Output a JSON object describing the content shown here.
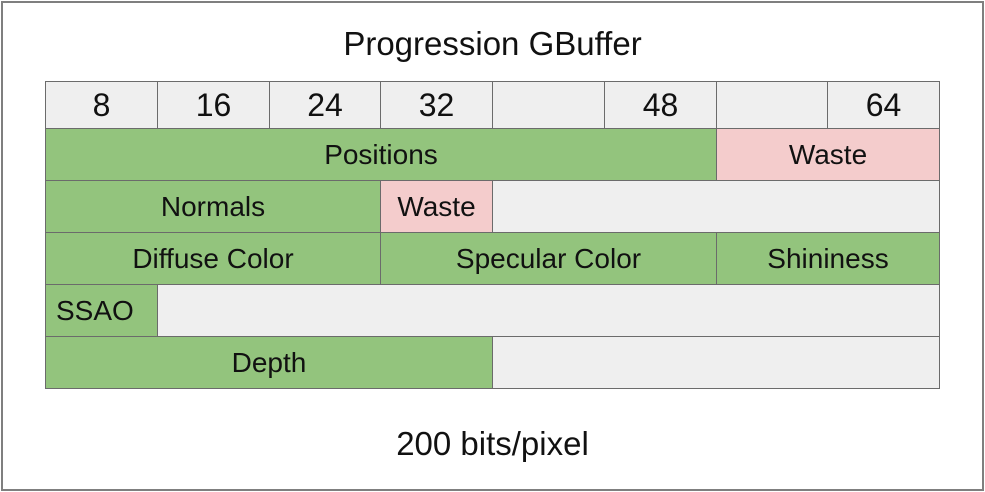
{
  "diagram": {
    "title": "Progression GBuffer",
    "footer": "200 bits/pixel",
    "colors": {
      "used": "#93c47d",
      "waste": "#f4cccc",
      "empty": "#efefef",
      "header": "#efefef",
      "border": "#6b6b6b"
    },
    "header": [
      "8",
      "16",
      "24",
      "32",
      "",
      "48",
      "",
      "64"
    ],
    "rows": [
      [
        {
          "label": "Positions",
          "start": 0,
          "span": 6,
          "kind": "used"
        },
        {
          "label": "Waste",
          "start": 6,
          "span": 2,
          "kind": "waste"
        }
      ],
      [
        {
          "label": "Normals",
          "start": 0,
          "span": 3,
          "kind": "used"
        },
        {
          "label": "Waste",
          "start": 3,
          "span": 1,
          "kind": "waste"
        },
        {
          "label": "",
          "start": 4,
          "span": 4,
          "kind": "empty"
        }
      ],
      [
        {
          "label": "Diffuse Color",
          "start": 0,
          "span": 3,
          "kind": "used"
        },
        {
          "label": "Specular Color",
          "start": 3,
          "span": 3,
          "kind": "used"
        },
        {
          "label": "Shininess",
          "start": 6,
          "span": 2,
          "kind": "used"
        }
      ],
      [
        {
          "label": "SSAO",
          "start": 0,
          "span": 1,
          "kind": "used"
        },
        {
          "label": "",
          "start": 1,
          "span": 7,
          "kind": "empty"
        }
      ],
      [
        {
          "label": "Depth",
          "start": 0,
          "span": 4,
          "kind": "used"
        },
        {
          "label": "",
          "start": 4,
          "span": 4,
          "kind": "empty"
        }
      ]
    ]
  }
}
